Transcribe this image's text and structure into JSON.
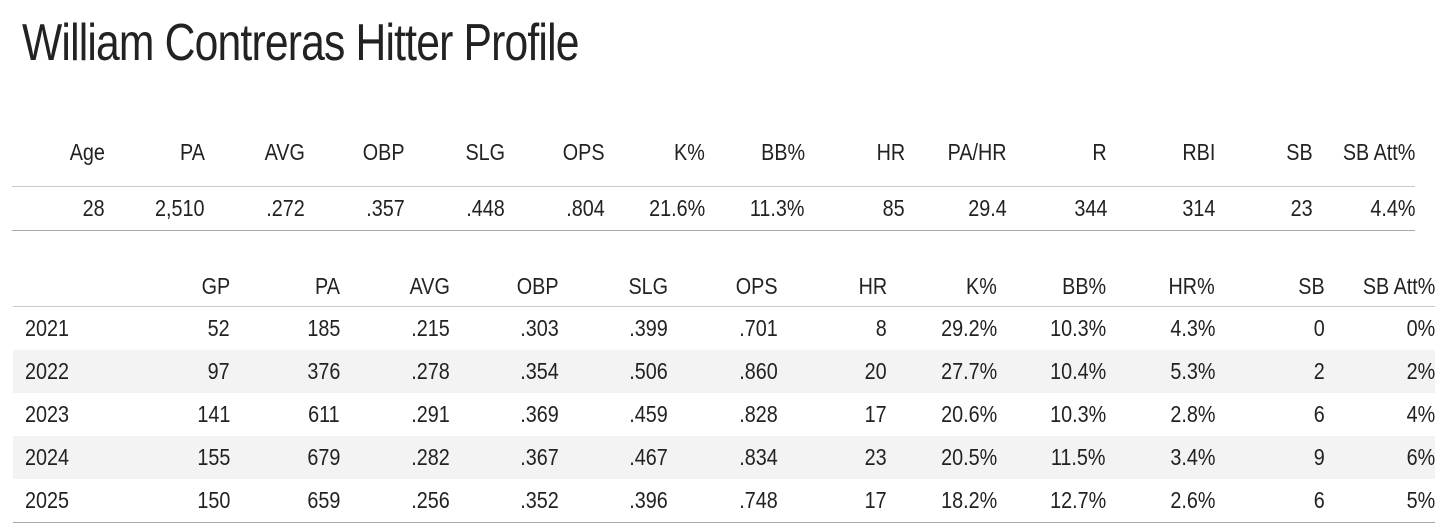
{
  "title": "William Contreras Hitter Profile",
  "career": {
    "headers": [
      "Age",
      "PA",
      "AVG",
      "OBP",
      "SLG",
      "OPS",
      "K%",
      "BB%",
      "HR",
      "PA/HR",
      "R",
      "RBI",
      "SB",
      "SB Att%"
    ],
    "values": [
      "28",
      "2,510",
      ".272",
      ".357",
      ".448",
      ".804",
      "21.6%",
      "11.3%",
      "85",
      "29.4",
      "344",
      "314",
      "23",
      "4.4%"
    ]
  },
  "seasons": {
    "headers": [
      "",
      "GP",
      "PA",
      "AVG",
      "OBP",
      "SLG",
      "OPS",
      "HR",
      "K%",
      "BB%",
      "HR%",
      "SB",
      "SB Att%"
    ],
    "rows": [
      [
        "2021",
        "52",
        "185",
        ".215",
        ".303",
        ".399",
        ".701",
        "8",
        "29.2%",
        "10.3%",
        "4.3%",
        "0",
        "0%"
      ],
      [
        "2022",
        "97",
        "376",
        ".278",
        ".354",
        ".506",
        ".860",
        "20",
        "27.7%",
        "10.4%",
        "5.3%",
        "2",
        "2%"
      ],
      [
        "2023",
        "141",
        "611",
        ".291",
        ".369",
        ".459",
        ".828",
        "17",
        "20.6%",
        "10.3%",
        "2.8%",
        "6",
        "4%"
      ],
      [
        "2024",
        "155",
        "679",
        ".282",
        ".367",
        ".467",
        ".834",
        "23",
        "20.5%",
        "11.5%",
        "3.4%",
        "9",
        "6%"
      ],
      [
        "2025",
        "150",
        "659",
        ".256",
        ".352",
        ".396",
        ".748",
        "17",
        "18.2%",
        "12.7%",
        "2.6%",
        "6",
        "5%"
      ]
    ]
  }
}
